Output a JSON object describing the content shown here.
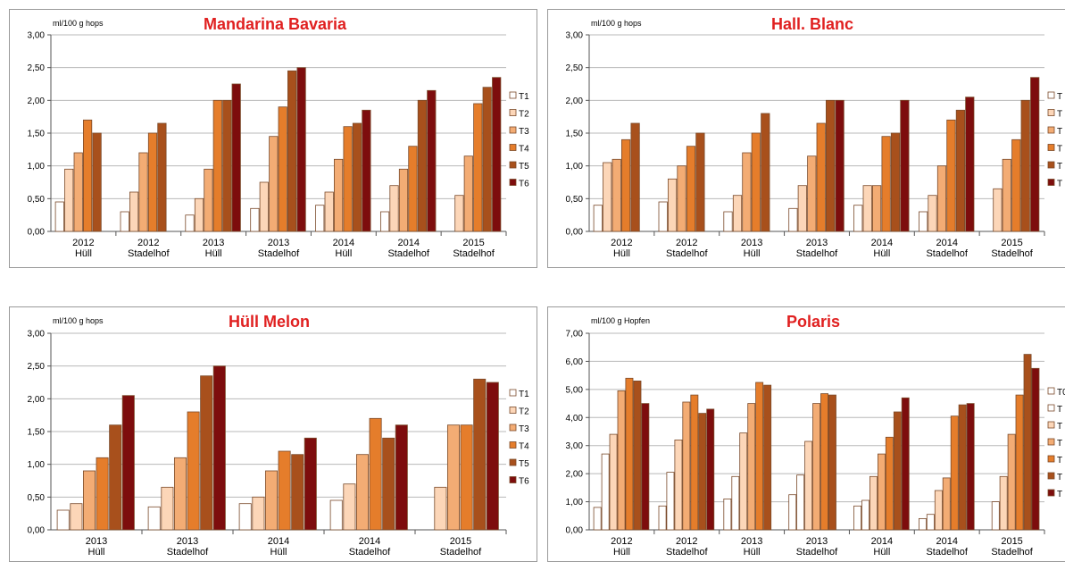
{
  "colors": {
    "series": [
      "#ffffff",
      "#fcd6b8",
      "#f3ac74",
      "#e57d2b",
      "#a8501c",
      "#7d0d0d"
    ],
    "title": "#e02020",
    "border": "#7a4a2a"
  },
  "chart_data": [
    {
      "type": "bar",
      "title": "Mandarina Bavaria",
      "ylabel": "ml/100  g hops",
      "ylim": [
        0,
        3
      ],
      "yticks": [
        "0,00",
        "0,50",
        "1,00",
        "1,50",
        "2,00",
        "2,50",
        "3,00"
      ],
      "categories": [
        [
          "2012",
          "Hüll"
        ],
        [
          "2012",
          "Stadelhof"
        ],
        [
          "2013",
          "Hüll"
        ],
        [
          "2013",
          "Stadelhof"
        ],
        [
          "2014",
          "Hüll"
        ],
        [
          "2014",
          "Stadelhof"
        ],
        [
          "2015",
          "Stadelhof"
        ]
      ],
      "legend_labels": [
        "T1",
        "T2",
        "T3",
        "T4",
        "T5",
        "T6"
      ],
      "series": [
        {
          "name": "T1",
          "values": [
            0.45,
            0.3,
            0.25,
            0.35,
            0.4,
            0.3,
            null
          ]
        },
        {
          "name": "T2",
          "values": [
            0.95,
            0.6,
            0.5,
            0.75,
            0.6,
            0.7,
            0.55
          ]
        },
        {
          "name": "T3",
          "values": [
            1.2,
            1.2,
            0.95,
            1.45,
            1.1,
            0.95,
            1.15
          ]
        },
        {
          "name": "T4",
          "values": [
            1.7,
            1.5,
            2.0,
            1.9,
            1.6,
            1.3,
            1.95
          ]
        },
        {
          "name": "T5",
          "values": [
            1.5,
            1.65,
            2.0,
            2.45,
            1.65,
            2.0,
            2.2
          ]
        },
        {
          "name": "T6",
          "values": [
            null,
            null,
            2.25,
            2.5,
            1.85,
            2.15,
            2.35
          ]
        }
      ],
      "grid": true,
      "legend_position": "right"
    },
    {
      "type": "bar",
      "title": "Hall. Blanc",
      "ylabel": "ml/100  g hops",
      "ylim": [
        0,
        3
      ],
      "yticks": [
        "0,00",
        "0,50",
        "1,00",
        "1,50",
        "2,00",
        "2,50",
        "3,00"
      ],
      "categories": [
        [
          "2012",
          "Hüll"
        ],
        [
          "2012",
          "Stadelhof"
        ],
        [
          "2013",
          "Hüll"
        ],
        [
          "2013",
          "Stadelhof"
        ],
        [
          "2014",
          "Hüll"
        ],
        [
          "2014",
          "Stadelhof"
        ],
        [
          "2015",
          "Stadelhof"
        ]
      ],
      "legend_labels": [
        "T",
        "T",
        "T",
        "T",
        "T",
        "T"
      ],
      "series": [
        {
          "values": [
            0.4,
            0.45,
            0.3,
            0.35,
            0.4,
            0.3,
            null
          ]
        },
        {
          "values": [
            1.05,
            0.8,
            0.55,
            0.7,
            0.7,
            0.55,
            0.65
          ]
        },
        {
          "values": [
            1.1,
            1.0,
            1.2,
            1.15,
            0.7,
            1.0,
            1.1
          ]
        },
        {
          "values": [
            1.4,
            1.3,
            1.5,
            1.65,
            1.45,
            1.7,
            1.4
          ]
        },
        {
          "values": [
            1.65,
            1.5,
            1.8,
            2.0,
            1.5,
            1.85,
            2.0
          ]
        },
        {
          "values": [
            null,
            null,
            null,
            2.0,
            2.0,
            2.05,
            2.35
          ]
        }
      ],
      "grid": true,
      "legend_position": "right"
    },
    {
      "type": "bar",
      "title": "Hüll Melon",
      "ylabel": "ml/100  g hops",
      "ylim": [
        0,
        3
      ],
      "yticks": [
        "0,00",
        "0,50",
        "1,00",
        "1,50",
        "2,00",
        "2,50",
        "3,00"
      ],
      "categories": [
        [
          "2013",
          "Hüll"
        ],
        [
          "2013",
          "Stadelhof"
        ],
        [
          "2014",
          "Hüll"
        ],
        [
          "2014",
          "Stadelhof"
        ],
        [
          "2015",
          "Stadelhof"
        ]
      ],
      "legend_labels": [
        "T1",
        "T2",
        "T3",
        "T4",
        "T5",
        "T6"
      ],
      "series": [
        {
          "name": "T1",
          "values": [
            0.3,
            0.35,
            0.4,
            0.45,
            null
          ]
        },
        {
          "name": "T2",
          "values": [
            0.4,
            0.65,
            0.5,
            0.7,
            0.65
          ]
        },
        {
          "name": "T3",
          "values": [
            0.9,
            1.1,
            0.9,
            1.15,
            1.6
          ]
        },
        {
          "name": "T4",
          "values": [
            1.1,
            1.8,
            1.2,
            1.7,
            1.6
          ]
        },
        {
          "name": "T5",
          "values": [
            1.6,
            2.35,
            1.15,
            1.4,
            2.3
          ]
        },
        {
          "name": "T6",
          "values": [
            2.05,
            2.5,
            1.4,
            1.6,
            2.25
          ]
        }
      ],
      "grid": true,
      "legend_position": "right"
    },
    {
      "type": "bar",
      "title": "Polaris",
      "ylabel": "ml/100  g Hopfen",
      "ylim": [
        0,
        7
      ],
      "yticks": [
        "0,00",
        "1,00",
        "2,00",
        "3,00",
        "4,00",
        "5,00",
        "6,00",
        "7,00"
      ],
      "categories": [
        [
          "2012",
          "Hüll"
        ],
        [
          "2012",
          "Stadelhof"
        ],
        [
          "2013",
          "Hüll"
        ],
        [
          "2013",
          "Stadelhof"
        ],
        [
          "2014",
          "Hüll"
        ],
        [
          "2014",
          "Stadelhof"
        ],
        [
          "2015",
          "Stadelhof"
        ]
      ],
      "legend_labels": [
        "T0",
        "T",
        "T",
        "T",
        "T",
        "T",
        "T"
      ],
      "series": [
        {
          "values": [
            0.8,
            0.85,
            1.1,
            1.25,
            0.85,
            0.4,
            null
          ]
        },
        {
          "values": [
            2.7,
            2.05,
            1.9,
            1.95,
            1.05,
            0.55,
            1.0
          ]
        },
        {
          "values": [
            3.4,
            3.2,
            3.45,
            3.15,
            1.9,
            1.4,
            1.9
          ]
        },
        {
          "values": [
            4.95,
            4.55,
            4.5,
            4.5,
            2.7,
            1.85,
            3.4
          ]
        },
        {
          "values": [
            5.4,
            4.8,
            5.25,
            4.85,
            3.3,
            4.05,
            4.8
          ]
        },
        {
          "values": [
            5.3,
            4.15,
            5.15,
            4.8,
            4.2,
            4.45,
            6.25
          ]
        },
        {
          "values": [
            4.5,
            4.3,
            null,
            null,
            4.7,
            4.5,
            5.75
          ]
        }
      ],
      "grid": true,
      "legend_position": "right"
    }
  ]
}
